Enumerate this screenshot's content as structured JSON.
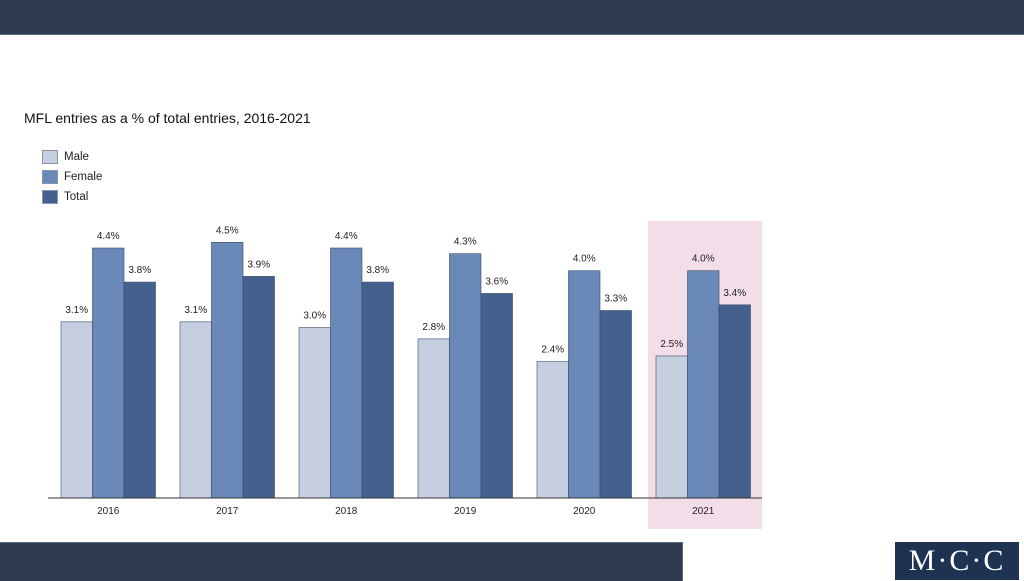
{
  "chart_data": {
    "type": "bar",
    "title": "MFL entries as a % of total entries, 2016-2021",
    "categories": [
      "2016",
      "2017",
      "2018",
      "2019",
      "2020",
      "2021"
    ],
    "series": [
      {
        "name": "Male",
        "values": [
          3.1,
          3.1,
          3.0,
          2.8,
          2.4,
          2.5
        ],
        "labels": [
          "3.1%",
          "3.1%",
          "3.0%",
          "2.8%",
          "2.4%",
          "2.5%"
        ],
        "color": "#c5cfe0"
      },
      {
        "name": "Female",
        "values": [
          4.4,
          4.5,
          4.4,
          4.3,
          4.0,
          4.0
        ],
        "labels": [
          "4.4%",
          "4.5%",
          "4.4%",
          "4.3%",
          "4.0%",
          "4.0%"
        ],
        "color": "#6a88b8"
      },
      {
        "name": "Total",
        "values": [
          3.8,
          3.9,
          3.8,
          3.6,
          3.3,
          3.4
        ],
        "labels": [
          "3.8%",
          "3.9%",
          "3.8%",
          "3.6%",
          "3.3%",
          "3.4%"
        ],
        "color": "#44608c"
      }
    ],
    "ylim": [
      0,
      4.5
    ],
    "highlight_category": "2021",
    "highlight_color": "#f3dde8",
    "legend_position": "top-left",
    "grid": false
  },
  "branding": {
    "logo_text": "M·C·C",
    "bar_color": "#2e3a4e",
    "logo_bg": "#1e3352"
  }
}
